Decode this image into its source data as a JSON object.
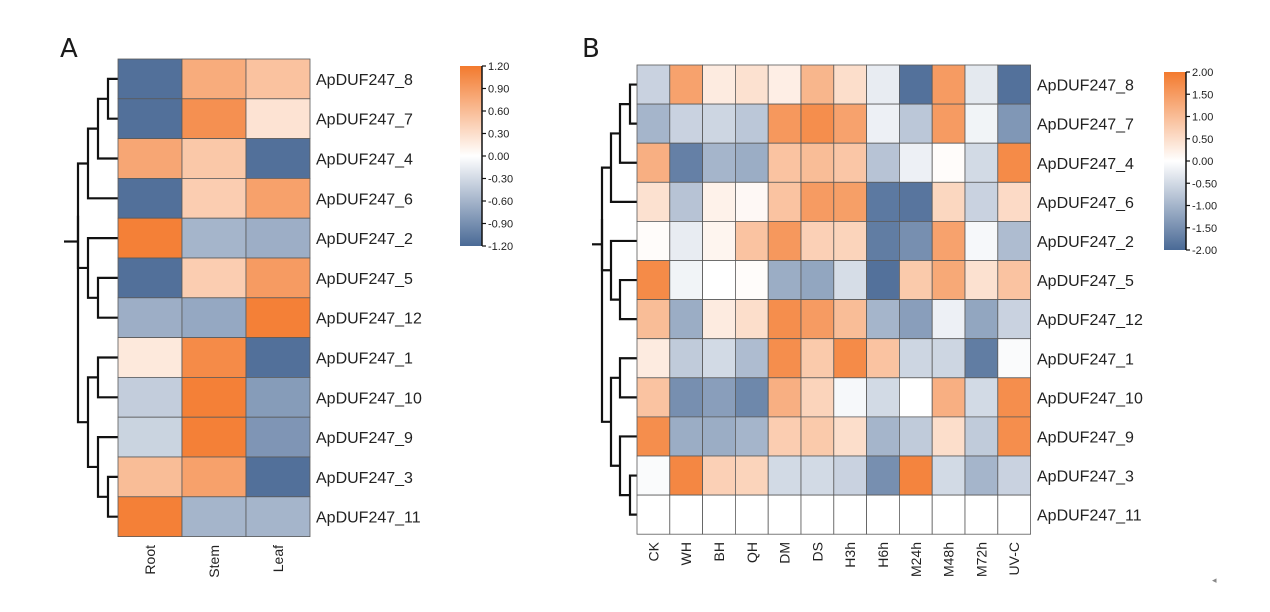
{
  "chart_data": [
    {
      "type": "heatmap",
      "panel": "A",
      "title": "",
      "panel_label": "A",
      "xlabel": "",
      "ylabel": "",
      "columns": [
        "Root",
        "Stem",
        "Leaf"
      ],
      "rows": [
        "ApDUF247_8",
        "ApDUF247_7",
        "ApDUF247_4",
        "ApDUF247_6",
        "ApDUF247_2",
        "ApDUF247_5",
        "ApDUF247_12",
        "ApDUF247_1",
        "ApDUF247_10",
        "ApDUF247_9",
        "ApDUF247_3",
        "ApDUF247_11"
      ],
      "values": [
        [
          -1.15,
          0.75,
          0.55
        ],
        [
          -1.15,
          1.0,
          0.25
        ],
        [
          0.8,
          0.5,
          -1.15
        ],
        [
          -1.15,
          0.45,
          0.85
        ],
        [
          1.15,
          -0.6,
          -0.65
        ],
        [
          -1.15,
          0.45,
          0.9
        ],
        [
          -0.65,
          -0.7,
          1.15
        ],
        [
          0.2,
          1.05,
          -1.15
        ],
        [
          -0.4,
          1.15,
          -0.8
        ],
        [
          -0.35,
          1.15,
          -0.85
        ],
        [
          0.6,
          0.85,
          -1.15
        ],
        [
          1.15,
          -0.6,
          -0.6
        ]
      ],
      "colorbar": {
        "min": -1.2,
        "max": 1.2,
        "ticks": [
          "1.20",
          "0.90",
          "0.60",
          "0.30",
          "0.00",
          "-0.30",
          "-0.60",
          "-0.90",
          "-1.20"
        ],
        "low_color": "#4a6a96",
        "mid_color": "#ffffff",
        "high_color": "#f37a2e",
        "placement": "top-right"
      },
      "dendrogram": "left"
    },
    {
      "type": "heatmap",
      "panel": "B",
      "title": "",
      "panel_label": "B",
      "xlabel": "",
      "ylabel": "",
      "columns": [
        "CK",
        "WH",
        "BH",
        "QH",
        "DM",
        "DS",
        "H3h",
        "H6h",
        "M24h",
        "M48h",
        "M72h",
        "UV-C"
      ],
      "rows": [
        "ApDUF247_8",
        "ApDUF247_7",
        "ApDUF247_4",
        "ApDUF247_6",
        "ApDUF247_2",
        "ApDUF247_5",
        "ApDUF247_12",
        "ApDUF247_1",
        "ApDUF247_10",
        "ApDUF247_9",
        "ApDUF247_3",
        "ApDUF247_11"
      ],
      "values": [
        [
          -0.6,
          1.4,
          0.3,
          0.45,
          0.25,
          1.1,
          0.5,
          -0.25,
          -1.9,
          1.5,
          -0.3,
          -1.9
        ],
        [
          -1.0,
          -0.6,
          -0.55,
          -0.75,
          1.55,
          1.7,
          1.4,
          -0.2,
          -0.75,
          1.5,
          -0.15,
          -1.4
        ],
        [
          1.2,
          -1.7,
          -1.0,
          -1.1,
          0.9,
          1.0,
          0.85,
          -0.8,
          -0.2,
          0.05,
          -0.5,
          1.75
        ],
        [
          0.45,
          -0.8,
          0.2,
          0.1,
          0.9,
          1.5,
          1.45,
          -1.8,
          -1.85,
          0.6,
          -0.6,
          0.55
        ],
        [
          0.05,
          -0.25,
          0.15,
          0.9,
          1.55,
          0.7,
          0.65,
          -1.75,
          -1.5,
          1.4,
          -0.1,
          -0.9
        ],
        [
          1.75,
          -0.15,
          0.0,
          0.05,
          -1.1,
          -1.2,
          -0.45,
          -1.9,
          0.8,
          1.3,
          0.45,
          0.9
        ],
        [
          1.0,
          -1.1,
          0.3,
          0.5,
          1.7,
          1.5,
          1.0,
          -1.0,
          -1.3,
          -0.2,
          -1.2,
          -0.6
        ],
        [
          0.3,
          -0.7,
          -0.5,
          -0.9,
          1.7,
          0.8,
          1.75,
          0.9,
          -0.55,
          -0.55,
          -1.75,
          -0.05
        ],
        [
          0.9,
          -1.5,
          -1.3,
          -1.6,
          1.2,
          0.65,
          -0.1,
          -0.5,
          0.0,
          1.2,
          -0.5,
          1.7
        ],
        [
          1.7,
          -1.1,
          -1.1,
          -1.0,
          0.75,
          0.8,
          0.5,
          -1.0,
          -0.7,
          0.5,
          -0.7,
          1.7
        ],
        [
          -0.05,
          1.8,
          0.7,
          0.65,
          -0.5,
          -0.5,
          -0.6,
          -1.5,
          1.85,
          -0.5,
          -1.0,
          -0.6
        ],
        [
          0.0,
          0.0,
          0.0,
          0.0,
          0.0,
          0.0,
          0.0,
          0.0,
          0.0,
          0.0,
          0.0,
          0.0
        ]
      ],
      "colorbar": {
        "min": -2.0,
        "max": 2.0,
        "ticks": [
          "2.00",
          "1.50",
          "1.00",
          "0.50",
          "0.00",
          "-0.50",
          "-1.00",
          "-1.50",
          "-2.00"
        ],
        "low_color": "#4a6a96",
        "mid_color": "#ffffff",
        "high_color": "#f37a2e",
        "placement": "top-right"
      },
      "dendrogram": "left"
    }
  ]
}
